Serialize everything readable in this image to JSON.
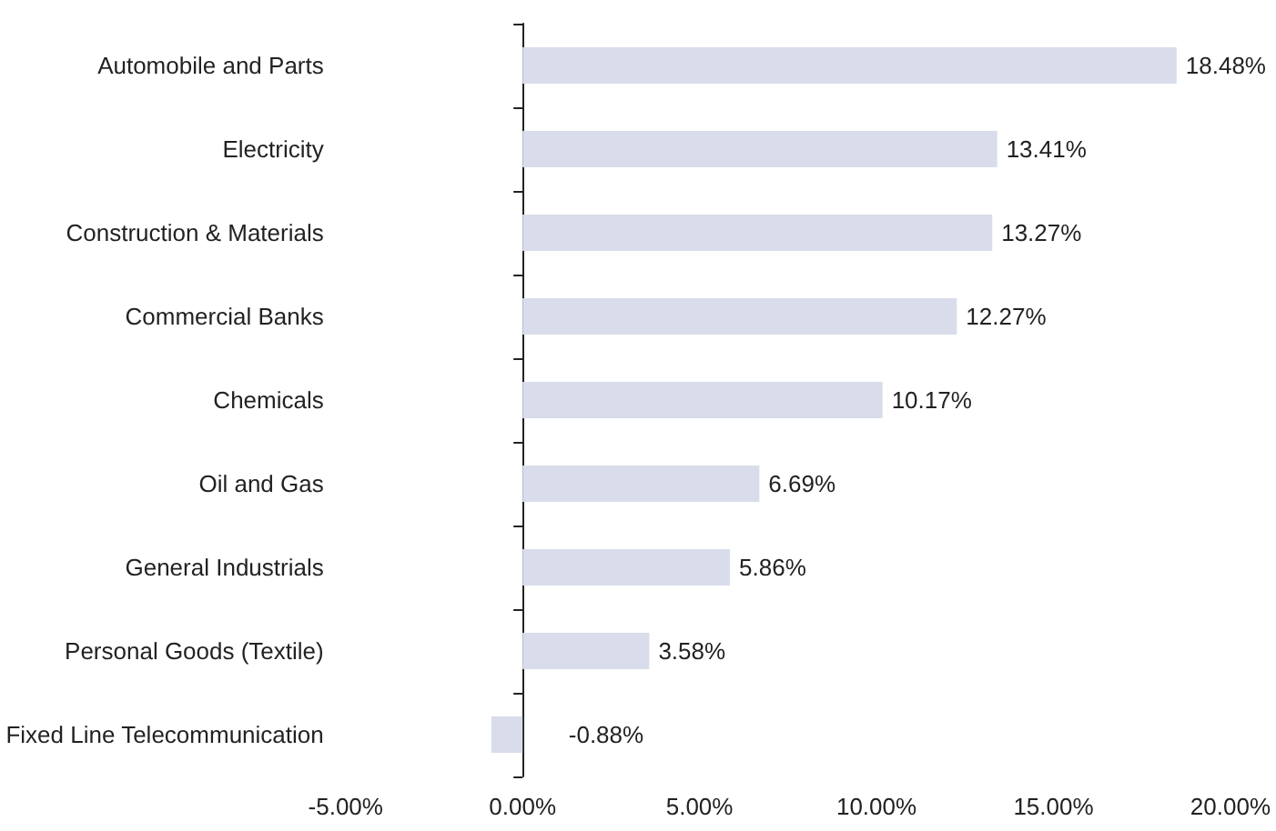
{
  "chart_data": {
    "type": "bar",
    "orientation": "horizontal",
    "categories": [
      "Automobile and Parts",
      "Electricity",
      "Construction & Materials",
      "Commercial Banks",
      "Chemicals",
      "Oil and Gas",
      "General Industrials",
      "Personal Goods (Textile)",
      "Fixed Line Telecommunication"
    ],
    "values": [
      18.48,
      13.41,
      13.27,
      12.27,
      10.17,
      6.69,
      5.86,
      3.58,
      -0.88
    ],
    "value_labels": [
      "18.48%",
      "13.41%",
      "13.27%",
      "12.27%",
      "10.17%",
      "6.69%",
      "5.86%",
      "3.58%",
      "-0.88%"
    ],
    "color": "#d9dcea",
    "xlabel": null,
    "xlim": [
      -5,
      20
    ],
    "xticks": [
      {
        "value": -5,
        "label": "-5.00%"
      },
      {
        "value": 0,
        "label": "0.00%"
      },
      {
        "value": 5,
        "label": "5.00%"
      },
      {
        "value": 10,
        "label": "10.00%"
      },
      {
        "value": 15,
        "label": "15.00%"
      },
      {
        "value": 20,
        "label": "20.00%"
      }
    ]
  }
}
